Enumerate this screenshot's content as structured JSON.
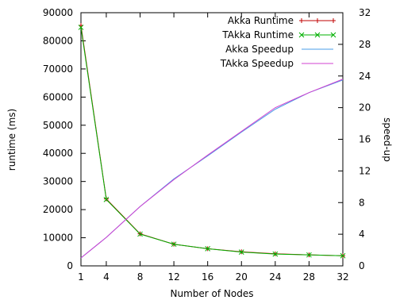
{
  "chart_data": {
    "type": "line",
    "xlabel": "Number of Nodes",
    "ylabel": "runtime (ms)",
    "y2label": "speed-up",
    "x_ticks": [
      1,
      4,
      8,
      12,
      16,
      20,
      24,
      28,
      32
    ],
    "y_ticks": [
      "0",
      "10000",
      "20000",
      "30000",
      "40000",
      "50000",
      "60000",
      "70000",
      "80000",
      "90000"
    ],
    "y2_ticks": [
      "0",
      "4",
      "8",
      "12",
      "16",
      "20",
      "24",
      "28",
      "32"
    ],
    "xlim": [
      1,
      32
    ],
    "ylim": [
      0,
      90000
    ],
    "y2lim": [
      0,
      32
    ],
    "grid": false,
    "legend_position": "top-right",
    "x": [
      1,
      4,
      8,
      12,
      16,
      20,
      24,
      28,
      32
    ],
    "series": [
      {
        "name": "Akka Runtime",
        "axis": "left",
        "color": "#c00000",
        "marker": "plus",
        "values": [
          85500,
          23800,
          11400,
          7700,
          6100,
          5000,
          4300,
          3900,
          3600
        ]
      },
      {
        "name": "TAkka Runtime",
        "axis": "left",
        "color": "#00b000",
        "marker": "x",
        "values": [
          84800,
          23600,
          11300,
          7700,
          6100,
          4900,
          4200,
          3900,
          3600
        ]
      },
      {
        "name": "Akka Speedup",
        "axis": "right",
        "color": "#4a9ee8",
        "marker": "none",
        "values": [
          1.0,
          3.6,
          7.5,
          11.0,
          13.9,
          16.9,
          19.8,
          21.9,
          23.5
        ]
      },
      {
        "name": "TAkka Speedup",
        "axis": "right",
        "color": "#d040d0",
        "marker": "none",
        "values": [
          1.0,
          3.6,
          7.5,
          10.9,
          14.0,
          17.0,
          20.0,
          21.9,
          23.6
        ]
      }
    ]
  }
}
